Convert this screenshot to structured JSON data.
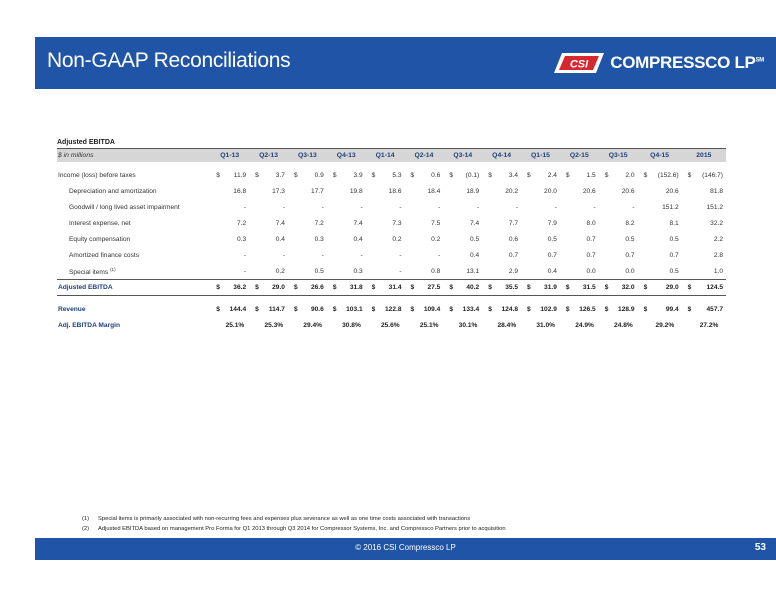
{
  "header": {
    "title": "Non-GAAP Reconciliations",
    "logo_badge": "CSI",
    "logo_text": "COMPRESSCO LP",
    "logo_tm": "SM"
  },
  "table": {
    "section_title": "Adjusted EBITDA",
    "unit_label": "$ in millions",
    "columns": [
      "Q1-13",
      "Q2-13",
      "Q3-13",
      "Q4-13",
      "Q1-14",
      "Q2-14",
      "Q3-14",
      "Q4-14",
      "Q1-15",
      "Q2-15",
      "Q3-15",
      "Q4-15",
      "2015"
    ],
    "rows": [
      {
        "label": "Income (loss) before taxes",
        "indent": false,
        "dollar": true,
        "values": [
          "11.9",
          "3.7",
          "0.9",
          "3.9",
          "5.3",
          "0.6",
          "(0.1)",
          "3.4",
          "2.4",
          "1.5",
          "2.0",
          "(152.6)",
          "(146.7)"
        ]
      },
      {
        "label": "Depreciation and amortization",
        "indent": true,
        "dollar": false,
        "values": [
          "16.8",
          "17.3",
          "17.7",
          "19.8",
          "18.6",
          "18.4",
          "18.9",
          "20.2",
          "20.0",
          "20.6",
          "20.6",
          "20.6",
          "81.8"
        ]
      },
      {
        "label": "Goodwill / long lived asset impairment",
        "indent": true,
        "dollar": false,
        "values": [
          "-",
          "-",
          "-",
          "-",
          "-",
          "-",
          "-",
          "-",
          "-",
          "-",
          "-",
          "151.2",
          "151.2"
        ]
      },
      {
        "label": "Interest expense, net",
        "indent": true,
        "dollar": false,
        "values": [
          "7.2",
          "7.4",
          "7.2",
          "7.4",
          "7.3",
          "7.5",
          "7.4",
          "7.7",
          "7.9",
          "8.0",
          "8.2",
          "8.1",
          "32.2"
        ]
      },
      {
        "label": "Equity compensation",
        "indent": true,
        "dollar": false,
        "values": [
          "0.3",
          "0.4",
          "0.3",
          "0.4",
          "0.2",
          "0.2",
          "0.5",
          "0.6",
          "0.5",
          "0.7",
          "0.5",
          "0.5",
          "2.2"
        ]
      },
      {
        "label": "Amortized finance costs",
        "indent": true,
        "dollar": false,
        "values": [
          "-",
          "-",
          "-",
          "-",
          "-",
          "-",
          "0.4",
          "0.7",
          "0.7",
          "0.7",
          "0.7",
          "0.7",
          "2.8"
        ]
      },
      {
        "label": "Special items",
        "sup": "(1)",
        "indent": true,
        "dollar": false,
        "values": [
          "-",
          "0.2",
          "0.5",
          "0.3",
          "-",
          "0.8",
          "13.1",
          "2.9",
          "0.4",
          "0.0",
          "0.0",
          "0.5",
          "1.0"
        ]
      }
    ],
    "total": {
      "label": "Adjusted EBITDA",
      "values": [
        "36.2",
        "29.0",
        "26.6",
        "31.8",
        "31.4",
        "27.5",
        "40.2",
        "35.5",
        "31.9",
        "31.5",
        "32.0",
        "29.0",
        "124.5"
      ]
    },
    "revenue": {
      "label": "Revenue",
      "values": [
        "144.4",
        "114.7",
        "90.6",
        "103.1",
        "122.8",
        "109.4",
        "133.4",
        "124.8",
        "102.9",
        "126.5",
        "128.9",
        "99.4",
        "457.7"
      ]
    },
    "margin": {
      "label": "Adj. EBITDA Margin",
      "values": [
        "25.1%",
        "25.3%",
        "29.4%",
        "30.8%",
        "25.6%",
        "25.1%",
        "30.1%",
        "28.4%",
        "31.0%",
        "24.9%",
        "24.8%",
        "29.2%",
        "27.2%"
      ]
    },
    "dollar_sign": "$"
  },
  "footnotes": [
    {
      "num": "(1)",
      "text": "Special items is primarily associated with non-recurring fees and expenses plus severance as well as one time costs associated with transactions"
    },
    {
      "num": "(2)",
      "text": "Adjusted EBITDA based on management Pro Forma for Q1 2013 through Q3 2014 for Compressor Systems, Inc. and Compressco Partners prior to acquisition"
    }
  ],
  "footer": {
    "copyright": "© 2016 CSI Compressco LP",
    "page_number": "53"
  },
  "colors": {
    "brand_blue": "#2054a6",
    "logo_red": "#d8282f",
    "header_gray": "#d6d6d6"
  }
}
